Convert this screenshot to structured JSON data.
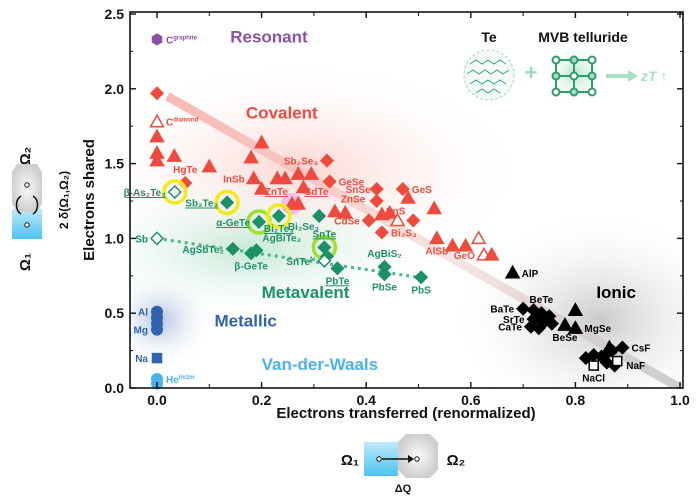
{
  "chart_data": {
    "type": "scatter",
    "xlabel": "Electrons transferred (renormalized)",
    "ylabel": "Electrons shared",
    "ylabel_secondary": "2 δ(Ω₁,Ω₂)",
    "xlim": [
      -0.05,
      1.0
    ],
    "ylim": [
      0.0,
      2.5
    ],
    "xticks": [
      "0.0",
      "0.2",
      "0.4",
      "0.6",
      "0.8",
      "1.0"
    ],
    "yticks": [
      "0.0",
      "0.5",
      "1.0",
      "1.5",
      "2.0",
      "2.5"
    ],
    "grid": false,
    "colors": {
      "covalent": "#ee4b3f",
      "metavalent": "#1e9068",
      "ionic": "#000000",
      "metallic": "#2f63b0",
      "vdw": "#4ab3ec",
      "resonant": "#8b4fa6",
      "ring_yellow": "#f2ea1a",
      "ring_green": "#9be22a",
      "ring_pink": "#e08be0"
    },
    "regions": [
      {
        "name": "Resonant",
        "color": "resonant",
        "x": 0.14,
        "y": 2.31
      },
      {
        "name": "Covalent",
        "color": "covalent",
        "x": 0.17,
        "y": 1.8
      },
      {
        "name": "Metavalent",
        "color": "metavalent",
        "x": 0.2,
        "y": 0.6
      },
      {
        "name": "Metallic",
        "color": "metallic",
        "x": 0.11,
        "y": 0.41
      },
      {
        "name": "Van-der-Waals",
        "color": "vdw",
        "x": 0.2,
        "y": 0.12
      },
      {
        "name": "Ionic",
        "color": "ionic",
        "x": 0.84,
        "y": 0.6
      }
    ],
    "trend_lines": [
      {
        "name": "covalent-ionic trend",
        "style": "broad",
        "points": [
          [
            0.02,
            1.95
          ],
          [
            1.0,
            0.0
          ]
        ]
      },
      {
        "name": "metavalent trend",
        "style": "dotted",
        "points": [
          [
            0.0,
            1.0
          ],
          [
            0.5,
            0.74
          ]
        ]
      }
    ],
    "series": [
      {
        "name": "Resonant",
        "color": "resonant",
        "points": [
          {
            "x": 0.0,
            "y": 2.33,
            "m": "hexagon",
            "label": "C",
            "sup": "graphite",
            "pos": "right"
          }
        ]
      },
      {
        "name": "Covalent",
        "color": "covalent",
        "points": [
          {
            "x": 0.0,
            "y": 1.97,
            "m": "diamond"
          },
          {
            "x": 0.0,
            "y": 1.78,
            "m": "open-triangle",
            "label": "C",
            "sup": "diamond",
            "pos": "right"
          },
          {
            "x": 0.0,
            "y": 1.68,
            "m": "triangle"
          },
          {
            "x": 0.0,
            "y": 1.57,
            "m": "triangle"
          },
          {
            "x": 0.0,
            "y": 1.52,
            "m": "triangle"
          },
          {
            "x": 0.033,
            "y": 1.55,
            "m": "triangle"
          },
          {
            "x": 0.054,
            "y": 1.37,
            "m": "diamond",
            "label": "HgTe",
            "pos": "above"
          },
          {
            "x": 0.1,
            "y": 1.48,
            "m": "triangle"
          },
          {
            "x": 0.185,
            "y": 1.4,
            "m": "triangle",
            "label": "InSb",
            "pos": "left"
          },
          {
            "x": 0.18,
            "y": 1.54,
            "m": "triangle"
          },
          {
            "x": 0.2,
            "y": 1.64,
            "m": "triangle"
          },
          {
            "x": 0.2,
            "y": 1.33,
            "m": "triangle"
          },
          {
            "x": 0.23,
            "y": 1.4,
            "m": "triangle"
          },
          {
            "x": 0.245,
            "y": 1.4,
            "m": "triangle"
          },
          {
            "x": 0.27,
            "y": 1.43,
            "m": "triangle"
          },
          {
            "x": 0.295,
            "y": 1.43,
            "m": "triangle"
          },
          {
            "x": 0.28,
            "y": 1.34,
            "m": "triangle"
          },
          {
            "x": 0.258,
            "y": 1.23,
            "m": "triangle",
            "ring": "ring_pink",
            "label": "ZnTe",
            "pos": "upleft",
            "underline": true
          },
          {
            "x": 0.27,
            "y": 1.23,
            "m": "triangle",
            "label": "CdTe",
            "pos": "upright",
            "underline": true
          },
          {
            "x": 0.325,
            "y": 1.52,
            "m": "diamond",
            "label": "Sb₂Se₃",
            "pos": "left"
          },
          {
            "x": 0.33,
            "y": 1.38,
            "m": "diamond",
            "label": "GeSe",
            "pos": "right"
          },
          {
            "x": 0.34,
            "y": 1.18,
            "m": "triangle",
            "label": "ZnSe",
            "pos": "upright"
          },
          {
            "x": 0.36,
            "y": 1.17,
            "m": "triangle"
          },
          {
            "x": 0.42,
            "y": 1.33,
            "m": "diamond",
            "label": "SnSe",
            "pos": "downleft"
          },
          {
            "x": 0.42,
            "y": 1.25,
            "m": "diamond"
          },
          {
            "x": 0.48,
            "y": 1.27,
            "m": "triangle"
          },
          {
            "x": 0.47,
            "y": 1.33,
            "m": "diamond",
            "label": "GeS",
            "pos": "right"
          },
          {
            "x": 0.53,
            "y": 1.2,
            "m": "triangle"
          },
          {
            "x": 0.405,
            "y": 1.12,
            "m": "diamond",
            "label": "CdSe",
            "pos": "left"
          },
          {
            "x": 0.43,
            "y": 1.04,
            "m": "diamond",
            "label": "Bi₂S₃",
            "pos": "right"
          },
          {
            "x": 0.43,
            "y": 1.16,
            "m": "triangle"
          },
          {
            "x": 0.445,
            "y": 1.17,
            "m": "triangle"
          },
          {
            "x": 0.46,
            "y": 1.12,
            "m": "open-triangle"
          },
          {
            "x": 0.49,
            "y": 1.12,
            "m": "diamond",
            "label": "SnS",
            "pos": "upleft2"
          },
          {
            "x": 0.535,
            "y": 1.0,
            "m": "triangle",
            "label": "AlSb",
            "pos": "below"
          },
          {
            "x": 0.565,
            "y": 0.95,
            "m": "triangle"
          },
          {
            "x": 0.59,
            "y": 0.95,
            "m": "triangle"
          },
          {
            "x": 0.615,
            "y": 1.0,
            "m": "open-triangle"
          },
          {
            "x": 0.625,
            "y": 0.89,
            "m": "open-triangle",
            "label": "GeO",
            "pos": "left"
          },
          {
            "x": 0.64,
            "y": 0.89,
            "m": "triangle"
          }
        ]
      },
      {
        "name": "Metavalent",
        "color": "metavalent",
        "points": [
          {
            "x": 0.034,
            "y": 1.31,
            "m": "open-diamond",
            "ring": "ring_yellow",
            "label": "β-As₂Te₃",
            "pos": "left",
            "underline": true
          },
          {
            "x": 0.134,
            "y": 1.24,
            "m": "diamond",
            "ring": "ring_yellow",
            "label": "Sb₂Te₃",
            "pos": "left",
            "underline": true
          },
          {
            "x": 0.195,
            "y": 1.11,
            "m": "diamond",
            "ring": "ring_green",
            "label": "α-GeTe",
            "pos": "left",
            "underline": true
          },
          {
            "x": 0.233,
            "y": 1.15,
            "m": "diamond",
            "ring": "ring_yellow",
            "label": "Bi₂Te₃",
            "pos": "below",
            "underline": true
          },
          {
            "x": 0.31,
            "y": 1.15,
            "m": "diamond",
            "label": "Bi₂Se₃",
            "pos": "belowleft"
          },
          {
            "x": 0.0,
            "y": 1.0,
            "m": "open-diamond",
            "label": "Sb",
            "pos": "left"
          },
          {
            "x": 0.145,
            "y": 0.93,
            "m": "diamond",
            "label": "AgSbTe₂",
            "pos": "left"
          },
          {
            "x": 0.18,
            "y": 0.9,
            "m": "diamond",
            "label": "β-GeTe",
            "pos": "below"
          },
          {
            "x": 0.19,
            "y": 0.92,
            "m": "diamond",
            "label": "AgBiTe₂",
            "pos": "upright"
          },
          {
            "x": 0.32,
            "y": 0.94,
            "m": "diamond",
            "ring": "ring_green",
            "label": "SnTe",
            "pos": "above",
            "underline": true
          },
          {
            "x": 0.325,
            "y": 0.88,
            "m": "diamond"
          },
          {
            "x": 0.32,
            "y": 0.85,
            "m": "open-diamond",
            "label": "SnTe",
            "sup": "fe",
            "pos": "left"
          },
          {
            "x": 0.345,
            "y": 0.8,
            "m": "diamond",
            "label": "PbTe",
            "pos": "below",
            "underline": true
          },
          {
            "x": 0.435,
            "y": 0.81,
            "m": "diamond",
            "label": "AgBiS₂",
            "pos": "above"
          },
          {
            "x": 0.435,
            "y": 0.76,
            "m": "diamond",
            "label": "PbSe",
            "pos": "below"
          },
          {
            "x": 0.505,
            "y": 0.74,
            "m": "diamond",
            "label": "PbS",
            "pos": "below"
          }
        ]
      },
      {
        "name": "Ionic",
        "color": "ionic",
        "points": [
          {
            "x": 0.68,
            "y": 0.77,
            "m": "triangle",
            "label": "AlP",
            "pos": "right"
          },
          {
            "x": 0.7,
            "y": 0.53,
            "m": "diamond",
            "label": "BaTe",
            "pos": "left"
          },
          {
            "x": 0.72,
            "y": 0.52,
            "m": "diamond"
          },
          {
            "x": 0.735,
            "y": 0.5,
            "m": "diamond",
            "label": "BeTe",
            "pos": "above"
          },
          {
            "x": 0.75,
            "y": 0.48,
            "m": "diamond"
          },
          {
            "x": 0.72,
            "y": 0.46,
            "m": "diamond",
            "label": "SrTe",
            "pos": "left"
          },
          {
            "x": 0.74,
            "y": 0.44,
            "m": "diamond"
          },
          {
            "x": 0.715,
            "y": 0.41,
            "m": "diamond",
            "label": "CaTe",
            "pos": "left"
          },
          {
            "x": 0.73,
            "y": 0.4,
            "m": "diamond"
          },
          {
            "x": 0.755,
            "y": 0.43,
            "m": "diamond"
          },
          {
            "x": 0.78,
            "y": 0.42,
            "m": "triangle",
            "label": "BeSe",
            "pos": "below"
          },
          {
            "x": 0.8,
            "y": 0.4,
            "m": "triangle",
            "label": "MgSe",
            "pos": "right"
          },
          {
            "x": 0.8,
            "y": 0.52,
            "m": "triangle"
          },
          {
            "x": 0.82,
            "y": 0.2,
            "m": "diamond"
          },
          {
            "x": 0.835,
            "y": 0.22,
            "m": "diamond"
          },
          {
            "x": 0.85,
            "y": 0.21,
            "m": "diamond"
          },
          {
            "x": 0.86,
            "y": 0.23,
            "m": "diamond"
          },
          {
            "x": 0.87,
            "y": 0.25,
            "m": "diamond"
          },
          {
            "x": 0.865,
            "y": 0.27,
            "m": "triangle"
          },
          {
            "x": 0.86,
            "y": 0.17,
            "m": "diamond"
          },
          {
            "x": 0.875,
            "y": 0.15,
            "m": "diamond"
          },
          {
            "x": 0.89,
            "y": 0.27,
            "m": "diamond",
            "label": "CsF",
            "pos": "right"
          },
          {
            "x": 0.835,
            "y": 0.15,
            "m": "open-square",
            "label": "NaCl",
            "pos": "below"
          },
          {
            "x": 0.88,
            "y": 0.18,
            "m": "open-square",
            "label": "NaF",
            "pos": "right2"
          }
        ]
      },
      {
        "name": "Metallic",
        "color": "metallic",
        "points": [
          {
            "x": 0.0,
            "y": 0.51,
            "m": "circle",
            "label": "Al",
            "pos": "left"
          },
          {
            "x": 0.0,
            "y": 0.47,
            "m": "circle"
          },
          {
            "x": 0.0,
            "y": 0.43,
            "m": "circle"
          },
          {
            "x": 0.0,
            "y": 0.39,
            "m": "circle",
            "label": "Mg",
            "pos": "left"
          },
          {
            "x": 0.0,
            "y": 0.2,
            "m": "square",
            "label": "Na",
            "pos": "left"
          }
        ]
      },
      {
        "name": "Van-der-Waals",
        "color": "vdw",
        "points": [
          {
            "x": 0.0,
            "y": 0.06,
            "m": "circle",
            "label": "He",
            "sup": "Im3m",
            "pos": "right"
          },
          {
            "x": 0.0,
            "y": 0.03,
            "m": "circle"
          }
        ]
      }
    ]
  },
  "inset_top": {
    "te_label": "Te",
    "mvb_label": "MVB telluride",
    "plus": "+",
    "result": "zT ↑"
  },
  "inset_left": {
    "omega2": "Ω₂",
    "omega1": "Ω₁"
  },
  "inset_bottom": {
    "omega1": "Ω₁",
    "omega2": "Ω₂",
    "delta_q": "ΔQ"
  }
}
